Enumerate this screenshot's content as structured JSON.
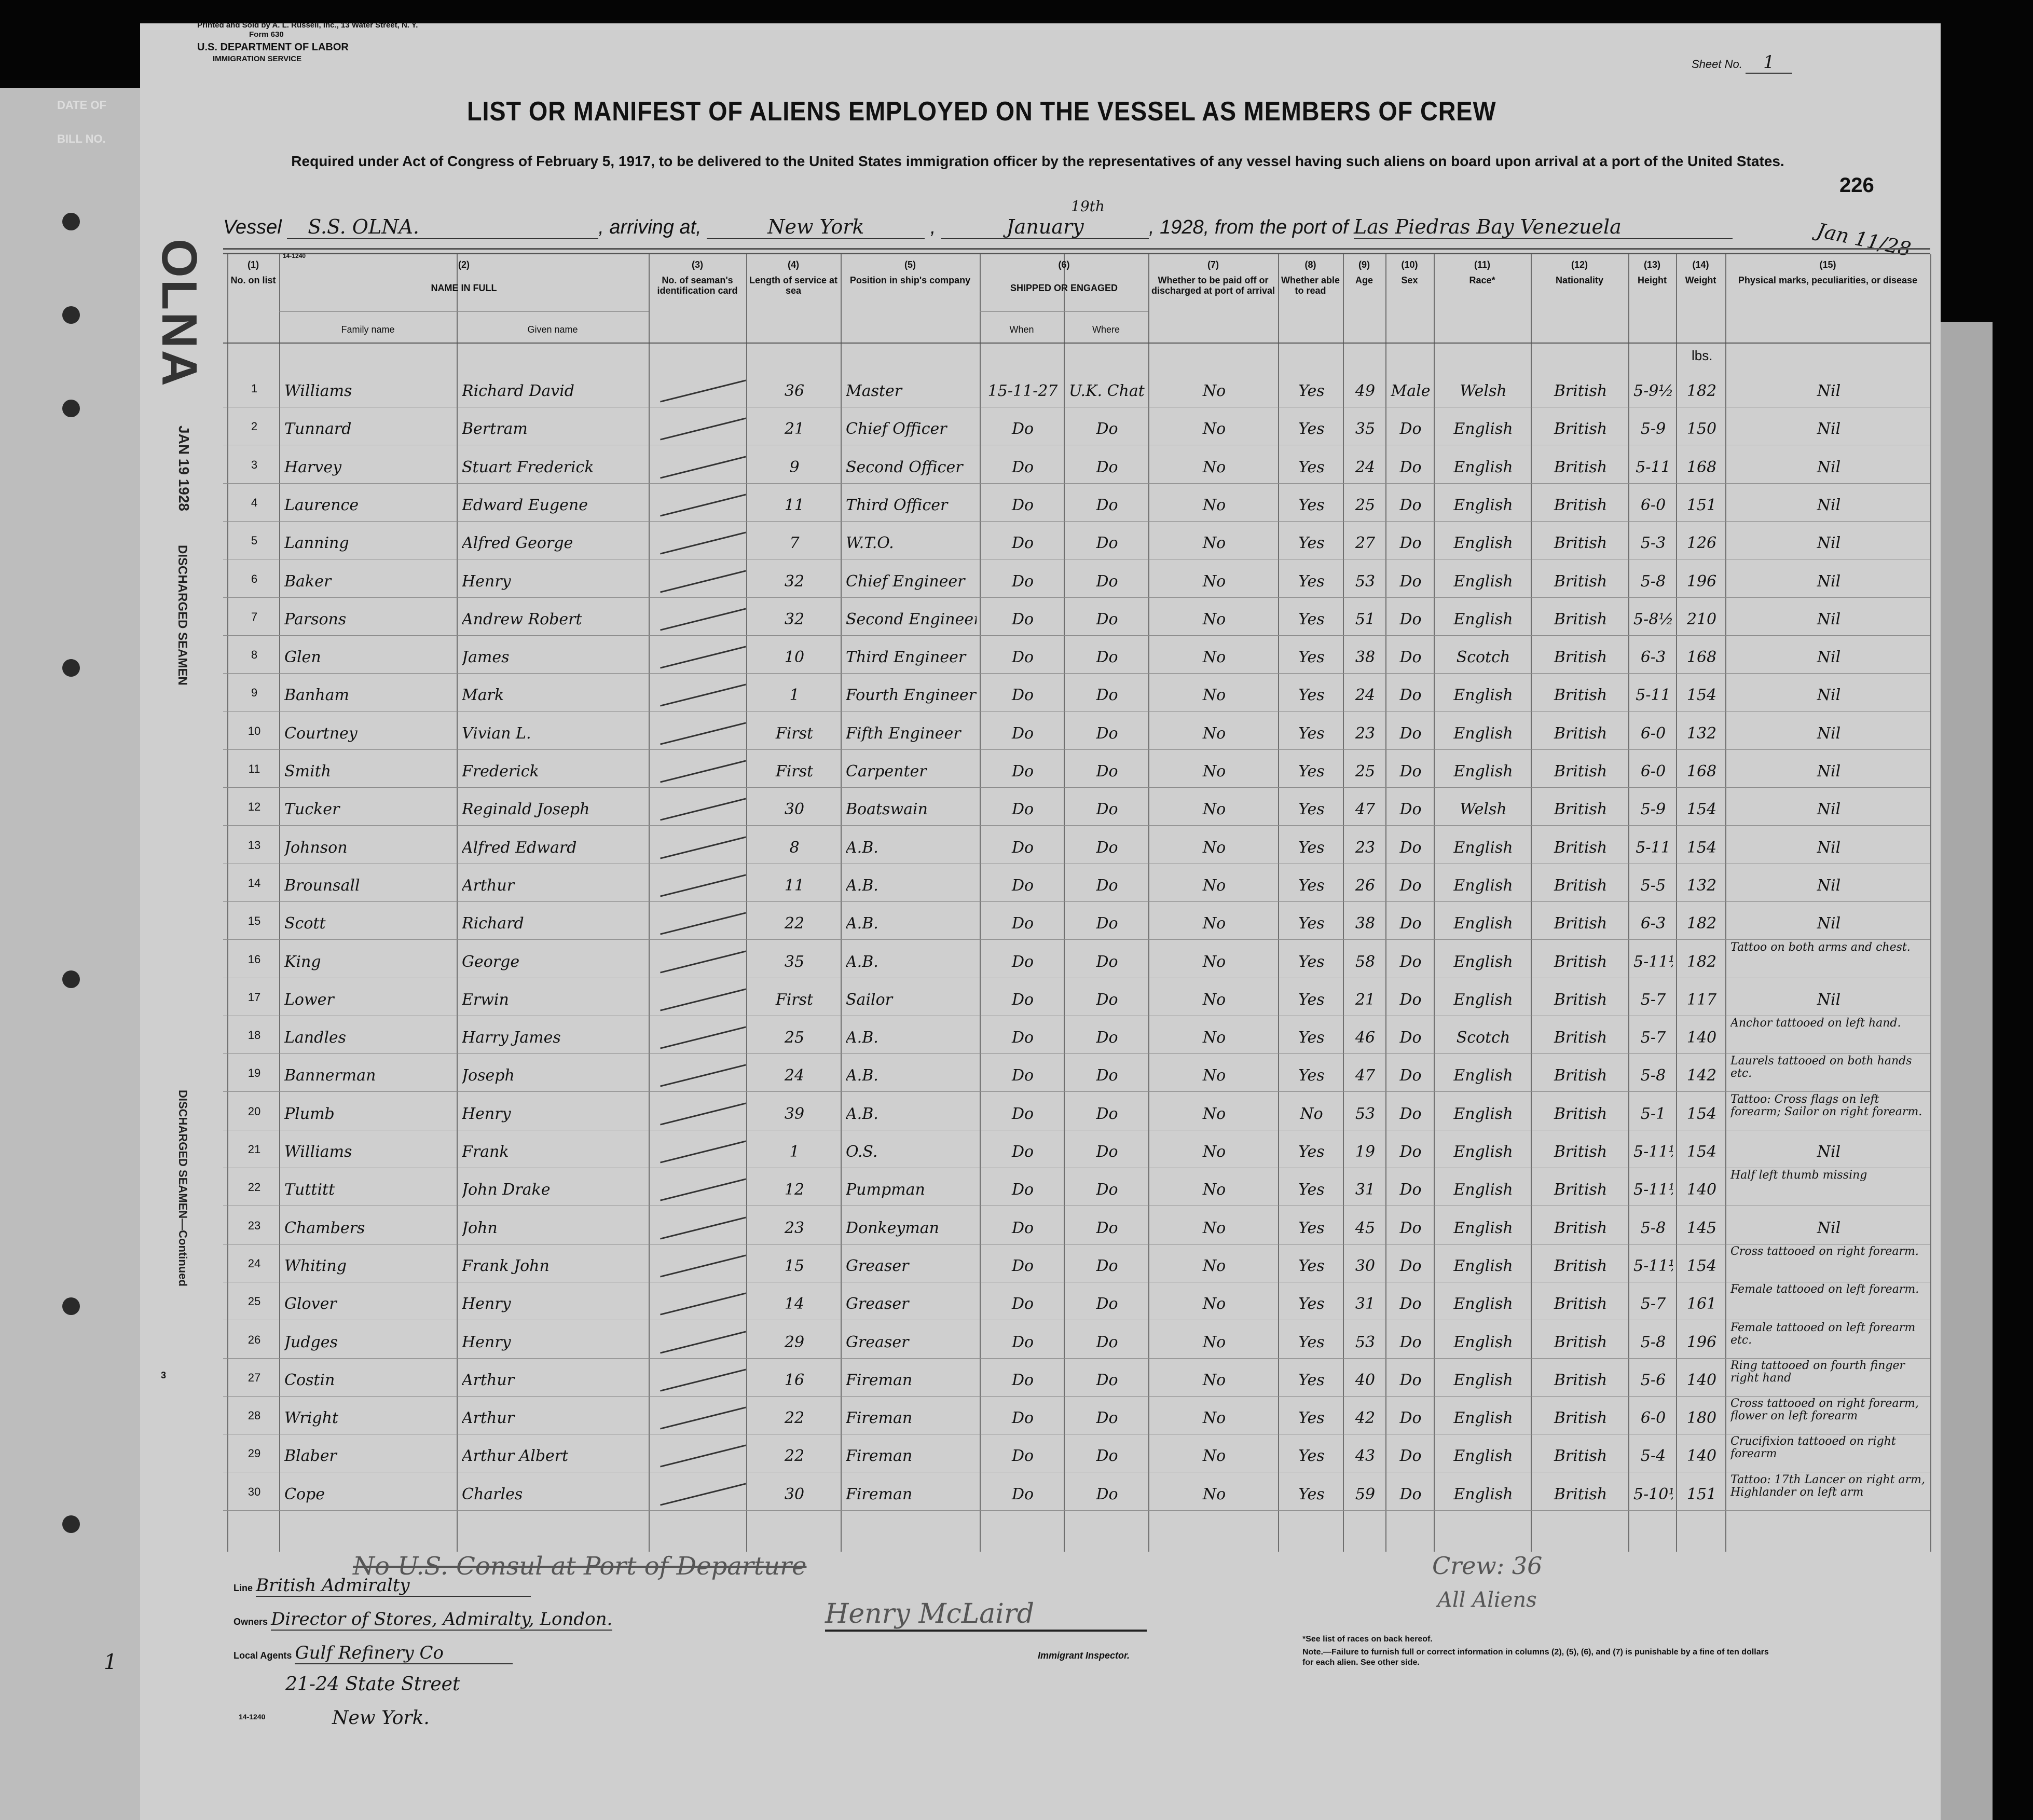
{
  "form": {
    "printer": "Printed and Sold by A. L. Russell, Inc., 13 Water Street, N. Y.",
    "form_no": "Form 630",
    "department": "U.S. DEPARTMENT OF LABOR",
    "service": "IMMIGRATION SERVICE",
    "sheet_label": "Sheet No.",
    "sheet_no": "1",
    "title": "LIST OR MANIFEST OF ALIENS EMPLOYED ON THE VESSEL AS MEMBERS OF CREW",
    "subtitle": "Required under Act of Congress of February 5, 1917, to be delivered to the United States immigration officer by the representatives of any vessel having such aliens on board upon arrival at a port of the United States.",
    "stamp_number": "226",
    "form_code": "14-1240"
  },
  "voyage": {
    "vessel_label": "Vessel",
    "vessel": "S.S. OLNA.",
    "arriving_label": ", arriving at,",
    "port": "New York",
    "date_day": "19th",
    "date_month": "January",
    "year": "1928",
    "from_label": ", from the port of",
    "from_port": "Las Piedras Bay Venezuela",
    "margin_date": "Jan 11/28"
  },
  "left_margin": {
    "label1": "DATE OF",
    "label2": "BILL NO.",
    "stamp_vessel": "OLNA",
    "stamp_date": "JAN 19 1928",
    "stamp_discharged_top": "DISCHARGED SEAMEN",
    "stamp_discharged_bottom": "DISCHARGED SEAMEN—Continued",
    "stamp_num": "3",
    "bottom_num": "1"
  },
  "columns": [
    {
      "num": "(1)",
      "label": "No. on list"
    },
    {
      "num": "(2)",
      "label": "NAME IN FULL",
      "sub": [
        "Family name",
        "Given name"
      ]
    },
    {
      "num": "(3)",
      "label": "No. of seaman's identification card"
    },
    {
      "num": "(4)",
      "label": "Length of service at sea"
    },
    {
      "num": "(5)",
      "label": "Position in ship's company"
    },
    {
      "num": "(6)",
      "label": "SHIPPED OR ENGAGED",
      "sub": [
        "When",
        "Where"
      ]
    },
    {
      "num": "(7)",
      "label": "Whether to be paid off or discharged at port of arrival"
    },
    {
      "num": "(8)",
      "label": "Whether able to read"
    },
    {
      "num": "(9)",
      "label": "Age"
    },
    {
      "num": "(10)",
      "label": "Sex"
    },
    {
      "num": "(11)",
      "label": "Race*"
    },
    {
      "num": "(12)",
      "label": "Nationality"
    },
    {
      "num": "(13)",
      "label": "Height"
    },
    {
      "num": "(14)",
      "label": "Weight"
    },
    {
      "num": "(15)",
      "label": "Physical marks, peculiarities, or disease"
    }
  ],
  "weight_unit": "lbs.",
  "crew": [
    {
      "no": "1",
      "family": "Williams",
      "given": "Richard David",
      "service": "36",
      "position": "Master",
      "when": "15-11-27",
      "where": "U.K. Chatham",
      "paid_off": "No",
      "read": "Yes",
      "age": "49",
      "sex": "Male",
      "race": "Welsh",
      "nationality": "British",
      "height": "5-9½",
      "weight": "182",
      "marks": "Nil"
    },
    {
      "no": "2",
      "family": "Tunnard",
      "given": "Bertram",
      "service": "21",
      "position": "Chief Officer",
      "when": "Do",
      "where": "Do",
      "paid_off": "No",
      "read": "Yes",
      "age": "35",
      "sex": "Do",
      "race": "English",
      "nationality": "British",
      "height": "5-9",
      "weight": "150",
      "marks": "Nil"
    },
    {
      "no": "3",
      "family": "Harvey",
      "given": "Stuart Frederick",
      "service": "9",
      "position": "Second Officer",
      "when": "Do",
      "where": "Do",
      "paid_off": "No",
      "read": "Yes",
      "age": "24",
      "sex": "Do",
      "race": "English",
      "nationality": "British",
      "height": "5-11",
      "weight": "168",
      "marks": "Nil"
    },
    {
      "no": "4",
      "family": "Laurence",
      "given": "Edward Eugene",
      "service": "11",
      "position": "Third Officer",
      "when": "Do",
      "where": "Do",
      "paid_off": "No",
      "read": "Yes",
      "age": "25",
      "sex": "Do",
      "race": "English",
      "nationality": "British",
      "height": "6-0",
      "weight": "151",
      "marks": "Nil"
    },
    {
      "no": "5",
      "family": "Lanning",
      "given": "Alfred George",
      "service": "7",
      "position": "W.T.O.",
      "when": "Do",
      "where": "Do",
      "paid_off": "No",
      "read": "Yes",
      "age": "27",
      "sex": "Do",
      "race": "English",
      "nationality": "British",
      "height": "5-3",
      "weight": "126",
      "marks": "Nil"
    },
    {
      "no": "6",
      "family": "Baker",
      "given": "Henry",
      "service": "32",
      "position": "Chief Engineer",
      "when": "Do",
      "where": "Do",
      "paid_off": "No",
      "read": "Yes",
      "age": "53",
      "sex": "Do",
      "race": "English",
      "nationality": "British",
      "height": "5-8",
      "weight": "196",
      "marks": "Nil"
    },
    {
      "no": "7",
      "family": "Parsons",
      "given": "Andrew Robert",
      "service": "32",
      "position": "Second Engineer",
      "when": "Do",
      "where": "Do",
      "paid_off": "No",
      "read": "Yes",
      "age": "51",
      "sex": "Do",
      "race": "English",
      "nationality": "British",
      "height": "5-8½",
      "weight": "210",
      "marks": "Nil"
    },
    {
      "no": "8",
      "family": "Glen",
      "given": "James",
      "service": "10",
      "position": "Third Engineer",
      "when": "Do",
      "where": "Do",
      "paid_off": "No",
      "read": "Yes",
      "age": "38",
      "sex": "Do",
      "race": "Scotch",
      "nationality": "British",
      "height": "6-3",
      "weight": "168",
      "marks": "Nil"
    },
    {
      "no": "9",
      "family": "Banham",
      "given": "Mark",
      "service": "1",
      "position": "Fourth Engineer",
      "when": "Do",
      "where": "Do",
      "paid_off": "No",
      "read": "Yes",
      "age": "24",
      "sex": "Do",
      "race": "English",
      "nationality": "British",
      "height": "5-11",
      "weight": "154",
      "marks": "Nil"
    },
    {
      "no": "10",
      "family": "Courtney",
      "given": "Vivian L.",
      "service": "First",
      "position": "Fifth Engineer",
      "when": "Do",
      "where": "Do",
      "paid_off": "No",
      "read": "Yes",
      "age": "23",
      "sex": "Do",
      "race": "English",
      "nationality": "British",
      "height": "6-0",
      "weight": "132",
      "marks": "Nil"
    },
    {
      "no": "11",
      "family": "Smith",
      "given": "Frederick",
      "service": "First",
      "position": "Carpenter",
      "when": "Do",
      "where": "Do",
      "paid_off": "No",
      "read": "Yes",
      "age": "25",
      "sex": "Do",
      "race": "English",
      "nationality": "British",
      "height": "6-0",
      "weight": "168",
      "marks": "Nil"
    },
    {
      "no": "12",
      "family": "Tucker",
      "given": "Reginald Joseph",
      "service": "30",
      "position": "Boatswain",
      "when": "Do",
      "where": "Do",
      "paid_off": "No",
      "read": "Yes",
      "age": "47",
      "sex": "Do",
      "race": "Welsh",
      "nationality": "British",
      "height": "5-9",
      "weight": "154",
      "marks": "Nil"
    },
    {
      "no": "13",
      "family": "Johnson",
      "given": "Alfred Edward",
      "service": "8",
      "position": "A.B.",
      "when": "Do",
      "where": "Do",
      "paid_off": "No",
      "read": "Yes",
      "age": "23",
      "sex": "Do",
      "race": "English",
      "nationality": "British",
      "height": "5-11",
      "weight": "154",
      "marks": "Nil"
    },
    {
      "no": "14",
      "family": "Brounsall",
      "given": "Arthur",
      "service": "11",
      "position": "A.B.",
      "when": "Do",
      "where": "Do",
      "paid_off": "No",
      "read": "Yes",
      "age": "26",
      "sex": "Do",
      "race": "English",
      "nationality": "British",
      "height": "5-5",
      "weight": "132",
      "marks": "Nil"
    },
    {
      "no": "15",
      "family": "Scott",
      "given": "Richard",
      "service": "22",
      "position": "A.B.",
      "when": "Do",
      "where": "Do",
      "paid_off": "No",
      "read": "Yes",
      "age": "38",
      "sex": "Do",
      "race": "English",
      "nationality": "British",
      "height": "6-3",
      "weight": "182",
      "marks": "Nil"
    },
    {
      "no": "16",
      "family": "King",
      "given": "George",
      "service": "35",
      "position": "A.B.",
      "when": "Do",
      "where": "Do",
      "paid_off": "No",
      "read": "Yes",
      "age": "58",
      "sex": "Do",
      "race": "English",
      "nationality": "British",
      "height": "5-11½",
      "weight": "182",
      "marks": "Tattoo on both arms and chest."
    },
    {
      "no": "17",
      "family": "Lower",
      "given": "Erwin",
      "service": "First",
      "position": "Sailor",
      "when": "Do",
      "where": "Do",
      "paid_off": "No",
      "read": "Yes",
      "age": "21",
      "sex": "Do",
      "race": "English",
      "nationality": "British",
      "height": "5-7",
      "weight": "117",
      "marks": "Nil"
    },
    {
      "no": "18",
      "family": "Landles",
      "given": "Harry James",
      "service": "25",
      "position": "A.B.",
      "when": "Do",
      "where": "Do",
      "paid_off": "No",
      "read": "Yes",
      "age": "46",
      "sex": "Do",
      "race": "Scotch",
      "nationality": "British",
      "height": "5-7",
      "weight": "140",
      "marks": "Anchor tattooed on left hand."
    },
    {
      "no": "19",
      "family": "Bannerman",
      "given": "Joseph",
      "service": "24",
      "position": "A.B.",
      "when": "Do",
      "where": "Do",
      "paid_off": "No",
      "read": "Yes",
      "age": "47",
      "sex": "Do",
      "race": "English",
      "nationality": "British",
      "height": "5-8",
      "weight": "142",
      "marks": "Laurels tattooed on both hands etc."
    },
    {
      "no": "20",
      "family": "Plumb",
      "given": "Henry",
      "service": "39",
      "position": "A.B.",
      "when": "Do",
      "where": "Do",
      "paid_off": "No",
      "read": "No",
      "age": "53",
      "sex": "Do",
      "race": "English",
      "nationality": "British",
      "height": "5-1",
      "weight": "154",
      "marks": "Tattoo: Cross flags on left forearm; Sailor on right forearm."
    },
    {
      "no": "21",
      "family": "Williams",
      "given": "Frank",
      "service": "1",
      "position": "O.S.",
      "when": "Do",
      "where": "Do",
      "paid_off": "No",
      "read": "Yes",
      "age": "19",
      "sex": "Do",
      "race": "English",
      "nationality": "British",
      "height": "5-11½",
      "weight": "154",
      "marks": "Nil"
    },
    {
      "no": "22",
      "family": "Tuttitt",
      "given": "John Drake",
      "service": "12",
      "position": "Pumpman",
      "when": "Do",
      "where": "Do",
      "paid_off": "No",
      "read": "Yes",
      "age": "31",
      "sex": "Do",
      "race": "English",
      "nationality": "British",
      "height": "5-11½",
      "weight": "140",
      "marks": "Half left thumb missing"
    },
    {
      "no": "23",
      "family": "Chambers",
      "given": "John",
      "service": "23",
      "position": "Donkeyman",
      "when": "Do",
      "where": "Do",
      "paid_off": "No",
      "read": "Yes",
      "age": "45",
      "sex": "Do",
      "race": "English",
      "nationality": "British",
      "height": "5-8",
      "weight": "145",
      "marks": "Nil"
    },
    {
      "no": "24",
      "family": "Whiting",
      "given": "Frank John",
      "service": "15",
      "position": "Greaser",
      "when": "Do",
      "where": "Do",
      "paid_off": "No",
      "read": "Yes",
      "age": "30",
      "sex": "Do",
      "race": "English",
      "nationality": "British",
      "height": "5-11½",
      "weight": "154",
      "marks": "Cross tattooed on right forearm."
    },
    {
      "no": "25",
      "family": "Glover",
      "given": "Henry",
      "service": "14",
      "position": "Greaser",
      "when": "Do",
      "where": "Do",
      "paid_off": "No",
      "read": "Yes",
      "age": "31",
      "sex": "Do",
      "race": "English",
      "nationality": "British",
      "height": "5-7",
      "weight": "161",
      "marks": "Female tattooed on left forearm."
    },
    {
      "no": "26",
      "family": "Judges",
      "given": "Henry",
      "service": "29",
      "position": "Greaser",
      "when": "Do",
      "where": "Do",
      "paid_off": "No",
      "read": "Yes",
      "age": "53",
      "sex": "Do",
      "race": "English",
      "nationality": "British",
      "height": "5-8",
      "weight": "196",
      "marks": "Female tattooed on left forearm etc."
    },
    {
      "no": "27",
      "family": "Costin",
      "given": "Arthur",
      "service": "16",
      "position": "Fireman",
      "when": "Do",
      "where": "Do",
      "paid_off": "No",
      "read": "Yes",
      "age": "40",
      "sex": "Do",
      "race": "English",
      "nationality": "British",
      "height": "5-6",
      "weight": "140",
      "marks": "Ring tattooed on fourth finger right hand"
    },
    {
      "no": "28",
      "family": "Wright",
      "given": "Arthur",
      "service": "22",
      "position": "Fireman",
      "when": "Do",
      "where": "Do",
      "paid_off": "No",
      "read": "Yes",
      "age": "42",
      "sex": "Do",
      "race": "English",
      "nationality": "British",
      "height": "6-0",
      "weight": "180",
      "marks": "Cross tattooed on right forearm, flower on left forearm"
    },
    {
      "no": "29",
      "family": "Blaber",
      "given": "Arthur Albert",
      "service": "22",
      "position": "Fireman",
      "when": "Do",
      "where": "Do",
      "paid_off": "No",
      "read": "Yes",
      "age": "43",
      "sex": "Do",
      "race": "English",
      "nationality": "British",
      "height": "5-4",
      "weight": "140",
      "marks": "Crucifixion tattooed on right forearm"
    },
    {
      "no": "30",
      "family": "Cope",
      "given": "Charles",
      "service": "30",
      "position": "Fireman",
      "when": "Do",
      "where": "Do",
      "paid_off": "No",
      "read": "Yes",
      "age": "59",
      "sex": "Do",
      "race": "English",
      "nationality": "British",
      "height": "5-10½",
      "weight": "151",
      "marks": "Tattoo: 17th Lancer on right arm, Highlander on left arm"
    }
  ],
  "footer": {
    "consul_note": "No U.S. Consul at Port of Departure",
    "crew_total": "Crew: 36",
    "all_aliens": "All Aliens",
    "line_label": "Line",
    "line_value": "British Admiralty",
    "owners_label": "Owners",
    "owners_value": "Director of Stores, Admiralty, London.",
    "agents_label": "Local Agents",
    "agents_value": "Gulf Refinery Co",
    "agents_address1": "21-24 State Street",
    "agents_address2": "New York.",
    "inspector_signature": "Henry McLaird",
    "inspector_label": "Immigrant Inspector.",
    "races_note": "*See list of races on back hereof.",
    "note": "Note.—Failure to furnish full or correct information in columns (2), (5), (6), and (7) is punishable by a fine of ten dollars for each alien. See other side."
  }
}
